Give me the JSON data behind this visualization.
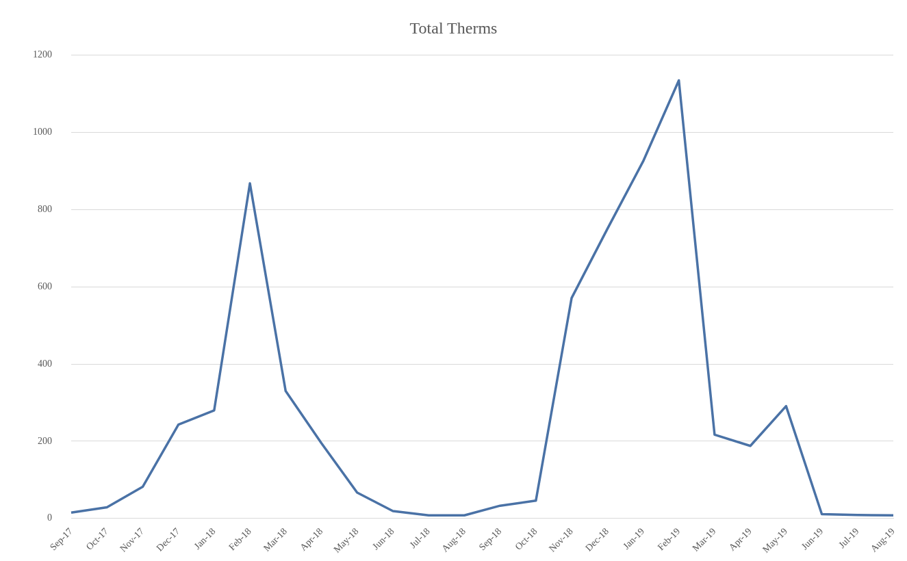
{
  "chart_data": {
    "type": "line",
    "title": "Total Therms",
    "categories": [
      "Sep-17",
      "Oct-17",
      "Nov-17",
      "Dec-17",
      "Jan-18",
      "Feb-18",
      "Mar-18",
      "Apr-18",
      "May-18",
      "Jun-18",
      "Jul-18",
      "Aug-18",
      "Sep-18",
      "Oct-18",
      "Nov-18",
      "Dec-18",
      "Jan-19",
      "Feb-19",
      "Mar-19",
      "Apr-19",
      "May-19",
      "Jun-19",
      "Jul-19",
      "Aug-19"
    ],
    "series": [
      {
        "color": "#4a72a6",
        "values": [
          15,
          29,
          82,
          243,
          280,
          868,
          330,
          195,
          67,
          19,
          8,
          8,
          33,
          46,
          571,
          750,
          925,
          1135,
          217,
          188,
          291,
          11,
          9,
          8
        ]
      }
    ],
    "ylim": [
      0,
      1200
    ],
    "yticks": [
      0,
      200,
      400,
      600,
      800,
      1000,
      1200
    ],
    "grid": "y",
    "legend": false,
    "marker": "none",
    "line_style": "solid"
  }
}
